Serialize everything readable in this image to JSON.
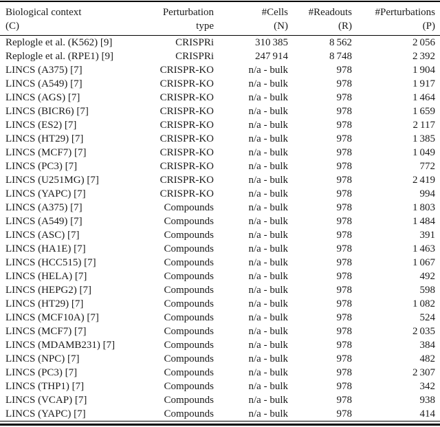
{
  "page": {
    "background": "#ffffff",
    "text_color": "#1a1a1a",
    "rule_color": "#000000"
  },
  "table": {
    "column_keys": [
      "biological-context",
      "perturbation-type",
      "cells",
      "readouts",
      "perturbations"
    ],
    "headers": [
      {
        "line1": "Biological context",
        "line2": "(C)"
      },
      {
        "line1": "Perturbation",
        "line2": "type"
      },
      {
        "line1": "#Cells",
        "line2": "(N)"
      },
      {
        "line1": "#Readouts",
        "line2": "(R)"
      },
      {
        "line1": "#Perturbations",
        "line2": "(P)"
      }
    ],
    "rows": [
      [
        "Replogle et al. (K562) [9]",
        "CRISPRi",
        "310 385",
        "8 562",
        "2 056"
      ],
      [
        "Replogle et al. (RPE1) [9]",
        "CRISPRi",
        "247 914",
        "8 748",
        "2 392"
      ],
      [
        "LINCS (A375) [7]",
        "CRISPR-KO",
        "n/a - bulk",
        "978",
        "1 904"
      ],
      [
        "LINCS (A549) [7]",
        "CRISPR-KO",
        "n/a - bulk",
        "978",
        "1 917"
      ],
      [
        "LINCS (AGS) [7]",
        "CRISPR-KO",
        "n/a - bulk",
        "978",
        "1 464"
      ],
      [
        "LINCS (BICR6) [7]",
        "CRISPR-KO",
        "n/a - bulk",
        "978",
        "1 659"
      ],
      [
        "LINCS (ES2) [7]",
        "CRISPR-KO",
        "n/a - bulk",
        "978",
        "2 117"
      ],
      [
        "LINCS (HT29) [7]",
        "CRISPR-KO",
        "n/a - bulk",
        "978",
        "1 385"
      ],
      [
        "LINCS (MCF7) [7]",
        "CRISPR-KO",
        "n/a - bulk",
        "978",
        "1 049"
      ],
      [
        "LINCS (PC3) [7]",
        "CRISPR-KO",
        "n/a - bulk",
        "978",
        "772"
      ],
      [
        "LINCS (U251MG) [7]",
        "CRISPR-KO",
        "n/a - bulk",
        "978",
        "2 419"
      ],
      [
        "LINCS (YAPC) [7]",
        "CRISPR-KO",
        "n/a - bulk",
        "978",
        "994"
      ],
      [
        "LINCS (A375) [7]",
        "Compounds",
        "n/a - bulk",
        "978",
        "1 803"
      ],
      [
        "LINCS (A549) [7]",
        "Compounds",
        "n/a - bulk",
        "978",
        "1 484"
      ],
      [
        "LINCS (ASC) [7]",
        "Compounds",
        "n/a - bulk",
        "978",
        "391"
      ],
      [
        "LINCS (HA1E) [7]",
        "Compounds",
        "n/a - bulk",
        "978",
        "1 463"
      ],
      [
        "LINCS (HCC515) [7]",
        "Compounds",
        "n/a - bulk",
        "978",
        "1 067"
      ],
      [
        "LINCS (HELA) [7]",
        "Compounds",
        "n/a - bulk",
        "978",
        "492"
      ],
      [
        "LINCS (HEPG2) [7]",
        "Compounds",
        "n/a - bulk",
        "978",
        "598"
      ],
      [
        "LINCS (HT29) [7]",
        "Compounds",
        "n/a - bulk",
        "978",
        "1 082"
      ],
      [
        "LINCS (MCF10A) [7]",
        "Compounds",
        "n/a - bulk",
        "978",
        "524"
      ],
      [
        "LINCS (MCF7) [7]",
        "Compounds",
        "n/a - bulk",
        "978",
        "2 035"
      ],
      [
        "LINCS (MDAMB231) [7]",
        "Compounds",
        "n/a - bulk",
        "978",
        "384"
      ],
      [
        "LINCS (NPC) [7]",
        "Compounds",
        "n/a - bulk",
        "978",
        "482"
      ],
      [
        "LINCS (PC3) [7]",
        "Compounds",
        "n/a - bulk",
        "978",
        "2 307"
      ],
      [
        "LINCS (THP1) [7]",
        "Compounds",
        "n/a - bulk",
        "978",
        "342"
      ],
      [
        "LINCS (VCAP) [7]",
        "Compounds",
        "n/a - bulk",
        "978",
        "938"
      ],
      [
        "LINCS (YAPC) [7]",
        "Compounds",
        "n/a - bulk",
        "978",
        "414"
      ]
    ]
  }
}
